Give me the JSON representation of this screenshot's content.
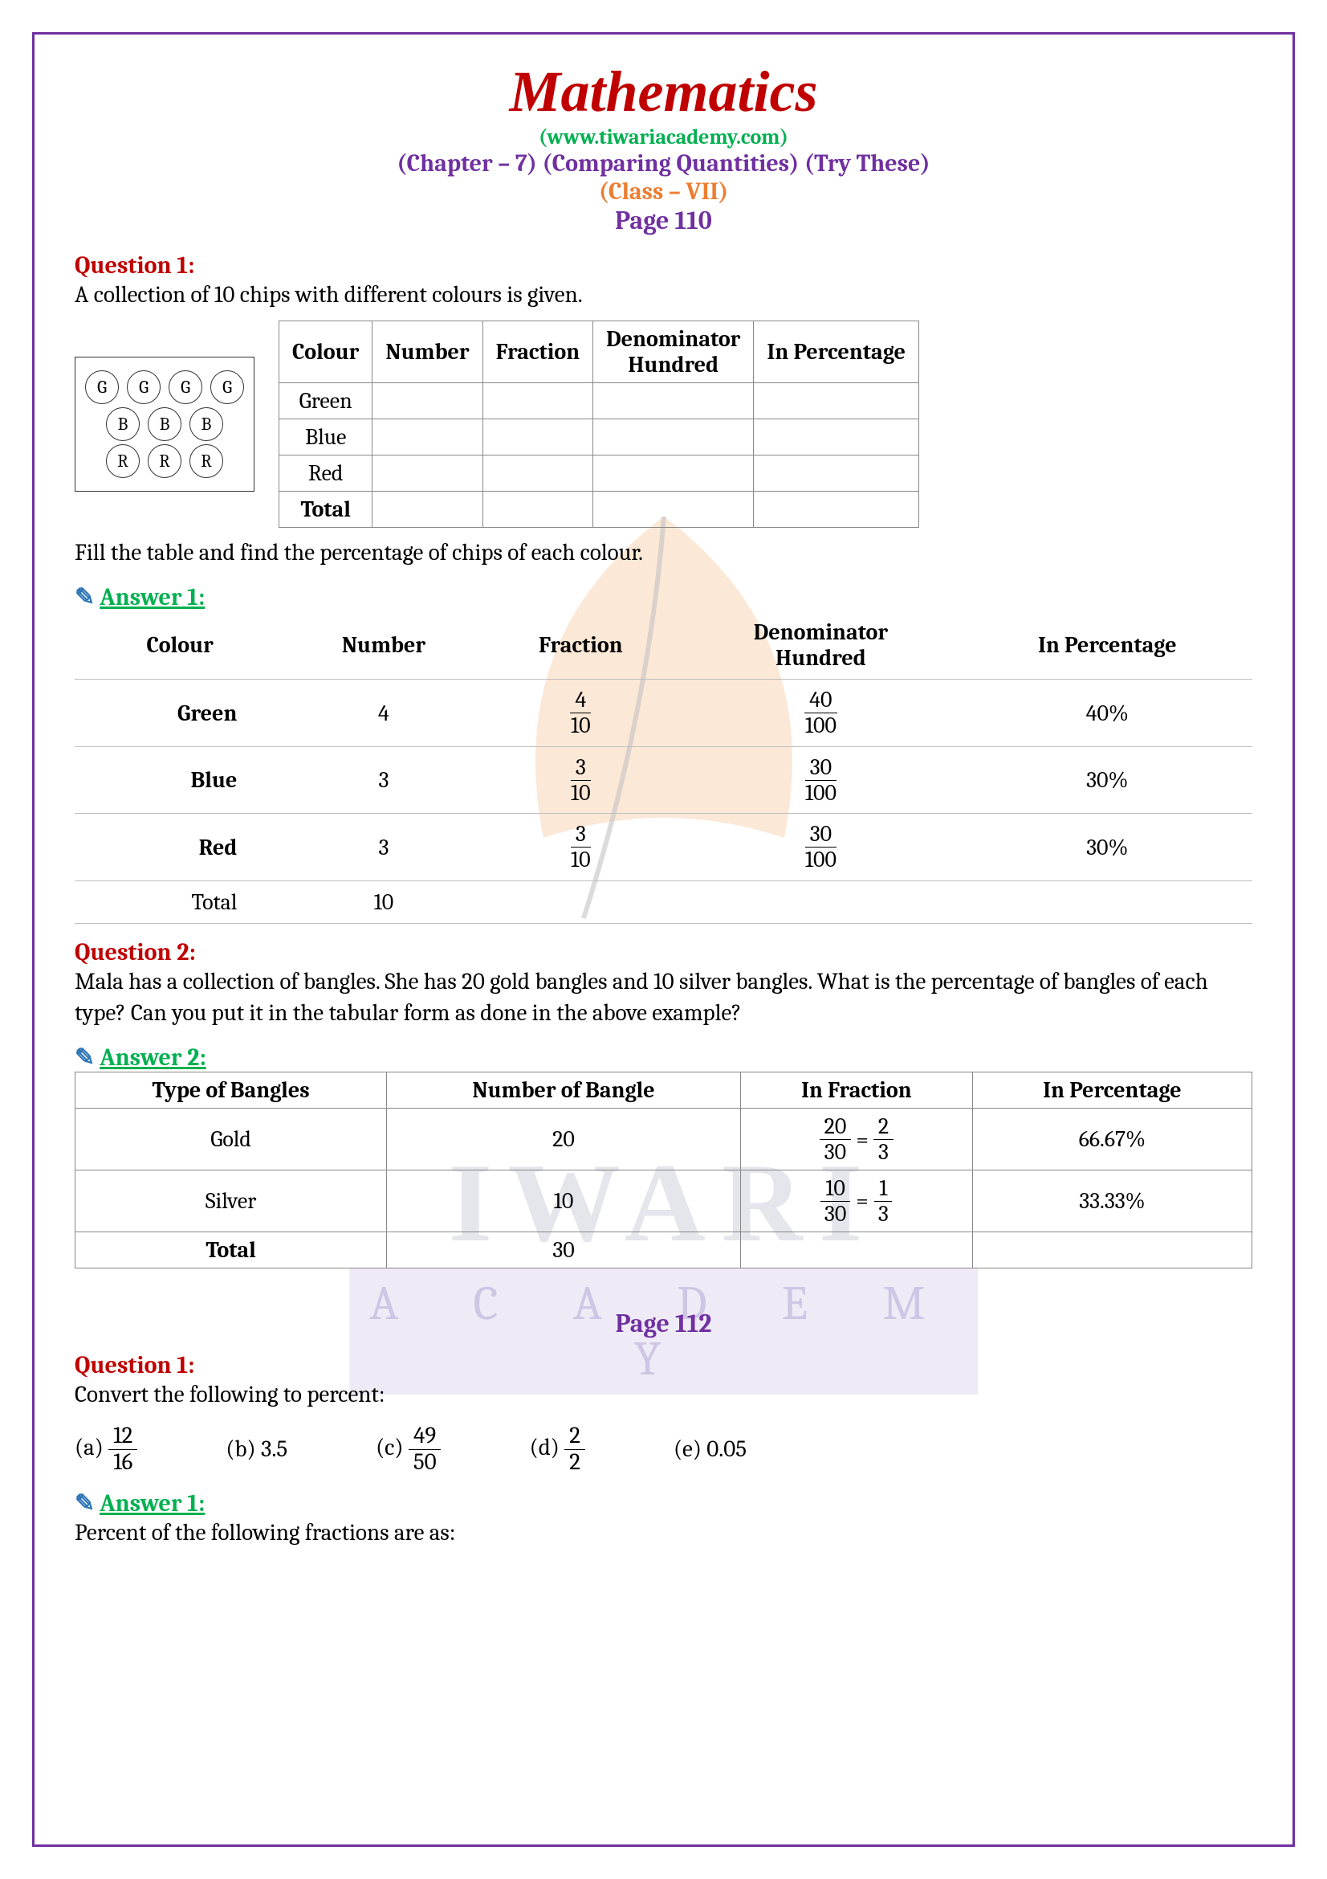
{
  "header": {
    "title": "Mathematics",
    "website": "(www.tiwariacademy.com)",
    "chapter": "(Chapter – 7) (Comparing Quantities) (Try These)",
    "class": "(Class – VII)",
    "page1_label": "Page 110",
    "page2_label": "Page 112"
  },
  "colors": {
    "title": "#c00000",
    "website": "#00b050",
    "chapter": "#7030a0",
    "class": "#ed7d31",
    "page": "#7030a0",
    "question": "#c00000",
    "answer": "#00b050"
  },
  "q1": {
    "label": "Question 1:",
    "text": "A collection of 10 chips with different colours is given.",
    "fill_text": "Fill the table and find the percentage of chips of each colour.",
    "chips": {
      "rows": [
        [
          "G",
          "G",
          "G",
          "G"
        ],
        [
          "B",
          "B",
          "B"
        ],
        [
          "R",
          "R",
          "R"
        ]
      ]
    },
    "table_headers": [
      "Colour",
      "Number",
      "Fraction",
      "Denominator Hundred",
      "In Percentage"
    ],
    "table_rows": [
      "Green",
      "Blue",
      "Red",
      "Total"
    ]
  },
  "a1": {
    "label": "Answer 1:",
    "headers": [
      "Colour",
      "Number",
      "Fraction",
      "Denominator Hundred",
      "In Percentage"
    ],
    "rows": [
      {
        "colour": "Green",
        "bold": true,
        "number": "4",
        "frac": {
          "n": "4",
          "d": "10"
        },
        "denom": {
          "n": "40",
          "d": "100"
        },
        "pct": "40%"
      },
      {
        "colour": "Blue",
        "bold": true,
        "number": "3",
        "frac": {
          "n": "3",
          "d": "10"
        },
        "denom": {
          "n": "30",
          "d": "100"
        },
        "pct": "30%"
      },
      {
        "colour": "Red",
        "bold": true,
        "number": "3",
        "frac": {
          "n": "3",
          "d": "10"
        },
        "denom": {
          "n": "30",
          "d": "100"
        },
        "pct": "30%"
      },
      {
        "colour": "Total",
        "bold": false,
        "number": "10",
        "frac": null,
        "denom": null,
        "pct": ""
      }
    ]
  },
  "q2": {
    "label": "Question 2:",
    "text": "Mala has a collection of bangles. She has 20 gold bangles and 10 silver bangles. What is the percentage of bangles of each type? Can you put it in the tabular form as done in the above example?"
  },
  "a2": {
    "label": "Answer 2:",
    "headers": [
      "Type of Bangles",
      "Number of Bangle",
      "In Fraction",
      "In Percentage"
    ],
    "rows": [
      {
        "type": "Gold",
        "num": "20",
        "frac": {
          "n1": "20",
          "d1": "30",
          "n2": "2",
          "d2": "3"
        },
        "pct": "66.67%"
      },
      {
        "type": "Silver",
        "num": "10",
        "frac": {
          "n1": "10",
          "d1": "30",
          "n2": "1",
          "d2": "3"
        },
        "pct": "33.33%"
      },
      {
        "type": "Total",
        "num": "30",
        "frac": null,
        "pct": ""
      }
    ]
  },
  "q3": {
    "label": "Question 1:",
    "text": "Convert the following to percent:",
    "options": [
      {
        "l": "(a)",
        "frac": {
          "n": "12",
          "d": "16"
        }
      },
      {
        "l": "(b)",
        "text": "3.5"
      },
      {
        "l": "(c)",
        "frac": {
          "n": "49",
          "d": "50"
        }
      },
      {
        "l": "(d)",
        "frac": {
          "n": "2",
          "d": "2"
        }
      },
      {
        "l": "(e)",
        "text": "0.05"
      }
    ]
  },
  "a3": {
    "label": "Answer 1:",
    "text": "Percent of the following fractions are as:"
  }
}
